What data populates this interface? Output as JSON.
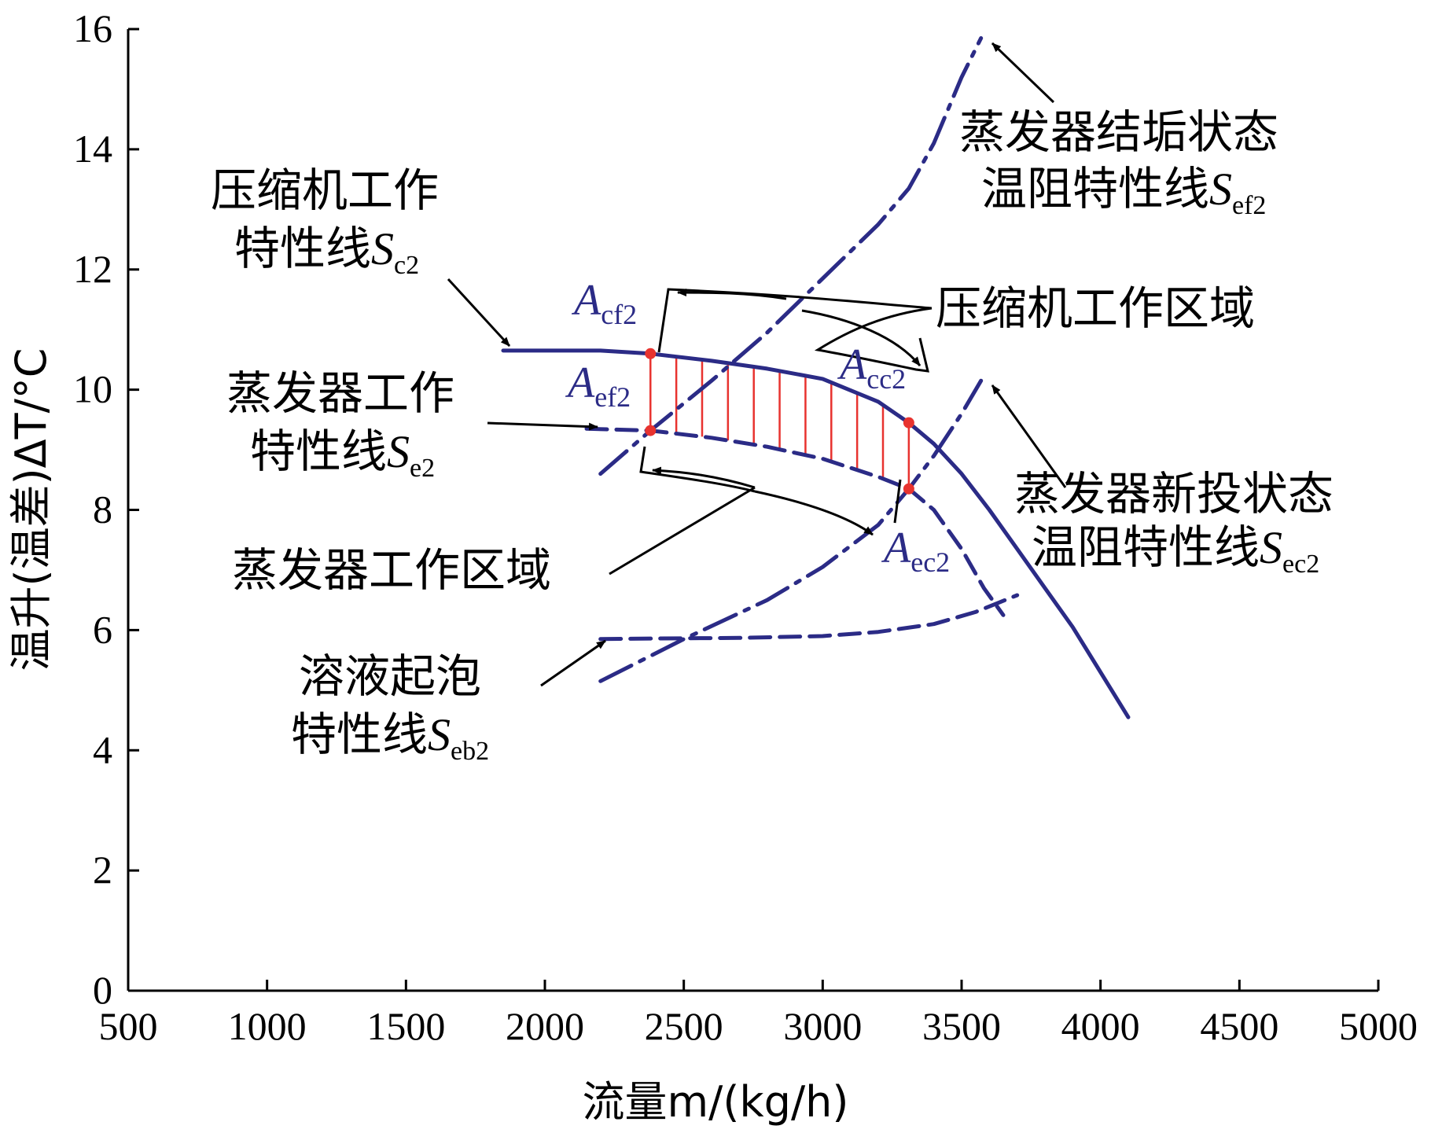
{
  "chart_data": {
    "type": "line",
    "xlabel": "流量m/(kg/h)",
    "ylabel": "温升(温差)ΔT/°C",
    "xlim": [
      500,
      5000
    ],
    "ylim": [
      0,
      16
    ],
    "xticks": [
      "500",
      "1000",
      "1500",
      "2000",
      "2500",
      "3000",
      "3500",
      "4000",
      "4500",
      "5000"
    ],
    "yticks": [
      "0",
      "2",
      "4",
      "6",
      "8",
      "10",
      "12",
      "14",
      "16"
    ],
    "grid": false,
    "line_color": "#2b2b86",
    "highlight_color": "#e8332f",
    "series": [
      {
        "id": "Sc2",
        "style": "solid",
        "x": [
          1850,
          2000,
          2200,
          2380,
          2600,
          2800,
          3000,
          3200,
          3310,
          3400,
          3500,
          3600,
          3700,
          3800,
          3900,
          4000,
          4100
        ],
        "y": [
          10.65,
          10.65,
          10.65,
          10.6,
          10.48,
          10.35,
          10.18,
          9.8,
          9.45,
          9.1,
          8.6,
          8.0,
          7.35,
          6.7,
          6.05,
          5.3,
          4.55
        ]
      },
      {
        "id": "Se2",
        "style": "dashed",
        "x": [
          2150,
          2380,
          2600,
          2800,
          3000,
          3200,
          3310,
          3400,
          3500,
          3580,
          3650
        ],
        "y": [
          9.35,
          9.32,
          9.2,
          9.05,
          8.85,
          8.55,
          8.35,
          8.0,
          7.35,
          6.7,
          6.25
        ]
      },
      {
        "id": "Sef2",
        "style": "dashdot",
        "x": [
          2200,
          2380,
          2600,
          2800,
          3000,
          3200,
          3310,
          3400,
          3500,
          3570
        ],
        "y": [
          8.6,
          9.32,
          10.15,
          10.95,
          11.85,
          12.75,
          13.35,
          14.1,
          15.2,
          15.85
        ]
      },
      {
        "id": "Sec2",
        "style": "dashdot",
        "x": [
          2200,
          2500,
          2800,
          3000,
          3200,
          3310,
          3400,
          3500,
          3570
        ],
        "y": [
          5.15,
          5.85,
          6.5,
          7.05,
          7.75,
          8.35,
          8.9,
          9.6,
          10.15
        ]
      },
      {
        "id": "Seb2",
        "style": "dashed",
        "x": [
          2200,
          2400,
          2700,
          3000,
          3200,
          3400,
          3550,
          3700
        ],
        "y": [
          5.85,
          5.86,
          5.87,
          5.9,
          5.97,
          6.1,
          6.3,
          6.58
        ]
      }
    ],
    "work_points": [
      {
        "label": "Acf2",
        "x": 2380,
        "y": 10.6
      },
      {
        "label": "Aef2",
        "x": 2380,
        "y": 9.32
      },
      {
        "label": "Acc2",
        "x": 3310,
        "y": 9.45
      },
      {
        "label": "Aec2",
        "x": 3310,
        "y": 8.35
      }
    ],
    "annotations": {
      "sc2_line1": "压缩机工作",
      "sc2_line2": "特性线",
      "sc2_sym": "S",
      "sc2_sub": "c2",
      "se2_line1": "蒸发器工作",
      "se2_line2": "特性线",
      "se2_sym": "S",
      "se2_sub": "e2",
      "sef2_line1": "蒸发器结垢状态",
      "sef2_line2": "温阻特性线",
      "sef2_sym": "S",
      "sef2_sub": "ef2",
      "sec2_line1": "蒸发器新投状态",
      "sec2_line2": "温阻特性线",
      "sec2_sym": "S",
      "sec2_sub": "ec2",
      "seb2_line1": "溶液起泡",
      "seb2_line2": "特性线",
      "seb2_sym": "S",
      "seb2_sub": "eb2",
      "comp_region": "压缩机工作区域",
      "evap_region": "蒸发器工作区域",
      "pt_sym": "A",
      "acf2_sub": "cf2",
      "aef2_sub": "ef2",
      "acc2_sub": "cc2",
      "aec2_sub": "ec2"
    }
  }
}
